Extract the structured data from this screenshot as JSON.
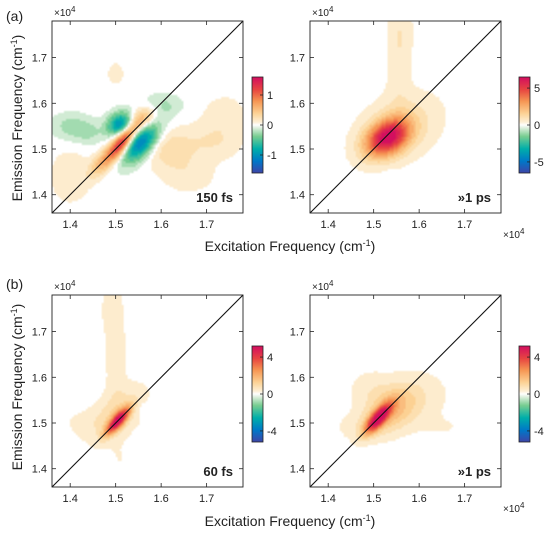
{
  "figure": {
    "row_labels": [
      "(a)",
      "(b)"
    ],
    "ylabel_main": "Emission Frequency (cm",
    "ylabel_sup": "-1",
    "ylabel_end": ")",
    "xlabel_main": "Excitation Frequency (cm",
    "xlabel_sup": "-1",
    "xlabel_end": ")",
    "exponent_base": "×10",
    "exponent_power": "4"
  },
  "chart_data": [
    {
      "type": "heatmap",
      "panel": "a-left",
      "annotation": "150 fs",
      "xlim": [
        1.36,
        1.78
      ],
      "ylim": [
        1.36,
        1.78
      ],
      "xticks": [
        1.4,
        1.5,
        1.6,
        1.7
      ],
      "yticks": [
        1.4,
        1.5,
        1.6,
        1.7
      ],
      "xticklabels": [
        "1.4",
        "1.5",
        "1.6",
        "1.7"
      ],
      "yticklabels": [
        "1.4",
        "1.5",
        "1.6",
        "1.7"
      ],
      "scale_factor": "×10^4",
      "colorbar": {
        "min": -1.6,
        "max": 1.6,
        "ticks": [
          -1,
          0,
          1
        ],
        "ticklabels": [
          "-1",
          "0",
          "1"
        ]
      },
      "diagonal": true,
      "features": [
        {
          "x": 1.515,
          "y": 1.515,
          "amplitude": 1.5,
          "sx": 0.022,
          "sy": 0.026,
          "rho": 0.75
        },
        {
          "x": 1.555,
          "y": 1.515,
          "amplitude": -1.2,
          "sx": 0.028,
          "sy": 0.03,
          "rho": 0.55
        },
        {
          "x": 1.51,
          "y": 1.555,
          "amplitude": -1.0,
          "sx": 0.02,
          "sy": 0.018,
          "rho": 0.2
        },
        {
          "x": 1.56,
          "y": 1.565,
          "amplitude": 0.6,
          "sx": 0.022,
          "sy": 0.02,
          "rho": 0.4
        },
        {
          "x": 1.47,
          "y": 1.47,
          "amplitude": 0.5,
          "sx": 0.02,
          "sy": 0.022,
          "rho": 0.6
        },
        {
          "x": 1.4,
          "y": 1.55,
          "amplitude": -0.25,
          "sx": 0.03,
          "sy": 0.02,
          "rho": 0.0
        },
        {
          "x": 1.44,
          "y": 1.535,
          "amplitude": -0.2,
          "sx": 0.025,
          "sy": 0.018,
          "rho": 0.0
        },
        {
          "x": 1.62,
          "y": 1.5,
          "amplitude": 0.3,
          "sx": 0.04,
          "sy": 0.03,
          "rho": 0.0
        },
        {
          "x": 1.72,
          "y": 1.52,
          "amplitude": 0.2,
          "sx": 0.04,
          "sy": 0.03,
          "rho": 0.0
        },
        {
          "x": 1.66,
          "y": 1.44,
          "amplitude": 0.15,
          "sx": 0.04,
          "sy": 0.025,
          "rho": 0.0
        },
        {
          "x": 1.74,
          "y": 1.58,
          "amplitude": 0.15,
          "sx": 0.03,
          "sy": 0.025,
          "rho": 0.0
        },
        {
          "x": 1.6,
          "y": 1.595,
          "amplitude": -0.25,
          "sx": 0.03,
          "sy": 0.018,
          "rho": 0.0
        },
        {
          "x": 1.4,
          "y": 1.44,
          "amplitude": 0.18,
          "sx": 0.03,
          "sy": 0.04,
          "rho": 0.0
        },
        {
          "x": 1.5,
          "y": 1.665,
          "amplitude": 0.12,
          "sx": 0.015,
          "sy": 0.02,
          "rho": 0.0
        }
      ]
    },
    {
      "type": "heatmap",
      "panel": "a-right",
      "annotation": "»1 ps",
      "xlim": [
        1.36,
        1.78
      ],
      "ylim": [
        1.36,
        1.78
      ],
      "xticks": [
        1.4,
        1.5,
        1.6,
        1.7
      ],
      "yticks": [
        1.4,
        1.5,
        1.6,
        1.7
      ],
      "xticklabels": [
        "1.4",
        "1.5",
        "1.6",
        "1.7"
      ],
      "yticklabels": [
        "1.4",
        "1.5",
        "1.6",
        "1.7"
      ],
      "scale_factor": "×10^4",
      "colorbar": {
        "min": -6.5,
        "max": 6.5,
        "ticks": [
          -5,
          0,
          5
        ],
        "ticklabels": [
          "-5",
          "0",
          "5"
        ]
      },
      "diagonal": true,
      "features": [
        {
          "x": 1.53,
          "y": 1.525,
          "amplitude": 6.0,
          "sx": 0.033,
          "sy": 0.028,
          "rho": 0.35
        },
        {
          "x": 1.555,
          "y": 1.545,
          "amplitude": 1.2,
          "sx": 0.06,
          "sy": 0.05,
          "rho": 0.3
        },
        {
          "x": 1.555,
          "y": 1.68,
          "amplitude": 0.6,
          "sx": 0.018,
          "sy": 0.07,
          "rho": 0.0
        },
        {
          "x": 1.56,
          "y": 1.76,
          "amplitude": 0.5,
          "sx": 0.02,
          "sy": 0.04,
          "rho": 0.0
        },
        {
          "x": 1.54,
          "y": 1.44,
          "amplitude": -0.4,
          "sx": 0.012,
          "sy": 0.01,
          "rho": 0.0
        }
      ]
    },
    {
      "type": "heatmap",
      "panel": "b-left",
      "annotation": "60 fs",
      "xlim": [
        1.36,
        1.78
      ],
      "ylim": [
        1.36,
        1.78
      ],
      "xticks": [
        1.4,
        1.5,
        1.6,
        1.7
      ],
      "yticks": [
        1.4,
        1.5,
        1.6,
        1.7
      ],
      "xticklabels": [
        "1.4",
        "1.5",
        "1.6",
        "1.7"
      ],
      "yticklabels": [
        "1.4",
        "1.5",
        "1.6",
        "1.7"
      ],
      "scale_factor": "×10^4",
      "colorbar": {
        "min": -5.2,
        "max": 5.2,
        "ticks": [
          -4,
          0,
          4
        ],
        "ticklabels": [
          "-4",
          "0",
          "4"
        ]
      },
      "diagonal": true,
      "features": [
        {
          "x": 1.505,
          "y": 1.505,
          "amplitude": 5.0,
          "sx": 0.018,
          "sy": 0.02,
          "rho": 0.8
        },
        {
          "x": 1.505,
          "y": 1.52,
          "amplitude": 1.0,
          "sx": 0.04,
          "sy": 0.04,
          "rho": 0.5
        },
        {
          "x": 1.5,
          "y": 1.65,
          "amplitude": 0.5,
          "sx": 0.016,
          "sy": 0.08,
          "rho": 0.0
        },
        {
          "x": 1.49,
          "y": 1.75,
          "amplitude": 0.4,
          "sx": 0.015,
          "sy": 0.035,
          "rho": 0.0
        },
        {
          "x": 1.56,
          "y": 1.53,
          "amplitude": -0.35,
          "sx": 0.025,
          "sy": 0.012,
          "rho": 0.0
        },
        {
          "x": 1.43,
          "y": 1.5,
          "amplitude": 0.25,
          "sx": 0.045,
          "sy": 0.025,
          "rho": 0.0
        },
        {
          "x": 1.68,
          "y": 1.48,
          "amplitude": -0.2,
          "sx": 0.025,
          "sy": 0.015,
          "rho": 0.0
        },
        {
          "x": 1.64,
          "y": 1.52,
          "amplitude": 0.15,
          "sx": 0.03,
          "sy": 0.02,
          "rho": 0.0
        },
        {
          "x": 1.51,
          "y": 1.42,
          "amplitude": 0.2,
          "sx": 0.02,
          "sy": 0.025,
          "rho": 0.0
        },
        {
          "x": 1.75,
          "y": 1.57,
          "amplitude": 0.12,
          "sx": 0.03,
          "sy": 0.025,
          "rho": 0.0
        }
      ]
    },
    {
      "type": "heatmap",
      "panel": "b-right",
      "annotation": "»1 ps",
      "xlim": [
        1.36,
        1.78
      ],
      "ylim": [
        1.36,
        1.78
      ],
      "xticks": [
        1.4,
        1.5,
        1.6,
        1.7
      ],
      "yticks": [
        1.4,
        1.5,
        1.6,
        1.7
      ],
      "xticklabels": [
        "1.4",
        "1.5",
        "1.6",
        "1.7"
      ],
      "yticklabels": [
        "1.4",
        "1.5",
        "1.6",
        "1.7"
      ],
      "scale_factor": "×10^4",
      "colorbar": {
        "min": -5.2,
        "max": 5.2,
        "ticks": [
          -4,
          0,
          4
        ],
        "ticklabels": [
          "-4",
          "0",
          "4"
        ]
      },
      "diagonal": true,
      "features": [
        {
          "x": 1.51,
          "y": 1.51,
          "amplitude": 5.0,
          "sx": 0.02,
          "sy": 0.022,
          "rho": 0.75
        },
        {
          "x": 1.535,
          "y": 1.525,
          "amplitude": 1.4,
          "sx": 0.04,
          "sy": 0.035,
          "rho": 0.4
        },
        {
          "x": 1.57,
          "y": 1.55,
          "amplitude": 0.6,
          "sx": 0.06,
          "sy": 0.04,
          "rho": 0.2
        },
        {
          "x": 1.49,
          "y": 1.58,
          "amplitude": 0.35,
          "sx": 0.03,
          "sy": 0.025,
          "rho": 0.0
        },
        {
          "x": 1.46,
          "y": 1.49,
          "amplitude": 0.3,
          "sx": 0.03,
          "sy": 0.02,
          "rho": 0.0
        },
        {
          "x": 1.66,
          "y": 1.49,
          "amplitude": 0.2,
          "sx": 0.045,
          "sy": 0.02,
          "rho": 0.0
        },
        {
          "x": 1.53,
          "y": 1.43,
          "amplitude": -0.2,
          "sx": 0.02,
          "sy": 0.012,
          "rho": 0.0
        }
      ]
    }
  ]
}
